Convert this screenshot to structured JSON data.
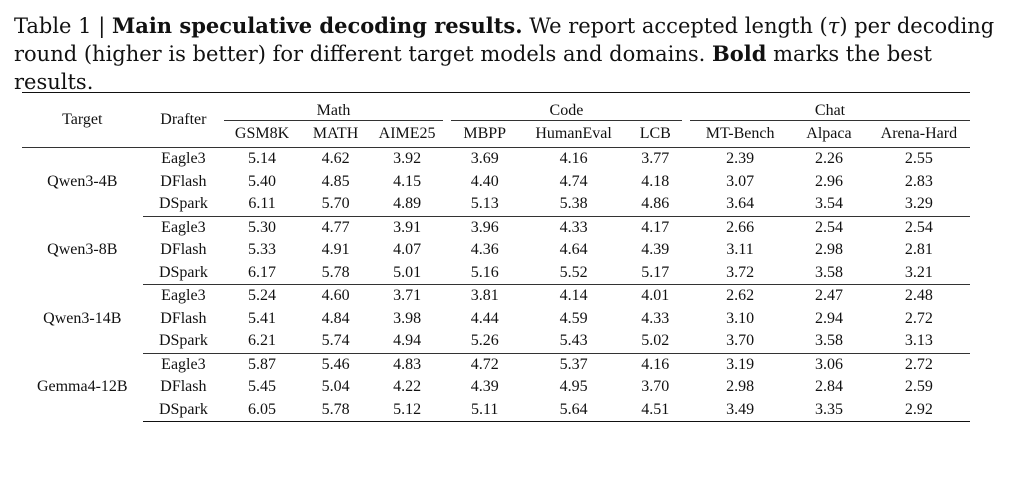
{
  "caption": {
    "label": "Table 1 |",
    "title": "Main speculative decoding results.",
    "text1": "We report accepted length (",
    "tau": "τ",
    "text2": ") per decoding round (higher is better) for different target models and domains.",
    "bold_word": "Bold",
    "text3": "marks the best results."
  },
  "headers": {
    "target": "Target",
    "drafter": "Drafter",
    "groups": [
      "Math",
      "Code",
      "Chat"
    ],
    "columns": [
      "GSM8K",
      "MATH",
      "AIME25",
      "MBPP",
      "HumanEval",
      "LCB",
      "MT-Bench",
      "Alpaca",
      "Arena-Hard"
    ]
  },
  "blocks": [
    {
      "target": "Qwen3-4B",
      "rows": [
        {
          "drafter": "Eagle3",
          "values": [
            "5.14",
            "4.62",
            "3.92",
            "3.69",
            "4.16",
            "3.77",
            "2.39",
            "2.26",
            "2.55"
          ]
        },
        {
          "drafter": "DFlash",
          "values": [
            "5.40",
            "4.85",
            "4.15",
            "4.40",
            "4.74",
            "4.18",
            "3.07",
            "2.96",
            "2.83"
          ]
        },
        {
          "drafter": "DSpark",
          "values": [
            "6.11",
            "5.70",
            "4.89",
            "5.13",
            "5.38",
            "4.86",
            "3.64",
            "3.54",
            "3.29"
          ]
        }
      ]
    },
    {
      "target": "Qwen3-8B",
      "rows": [
        {
          "drafter": "Eagle3",
          "values": [
            "5.30",
            "4.77",
            "3.91",
            "3.96",
            "4.33",
            "4.17",
            "2.66",
            "2.54",
            "2.54"
          ]
        },
        {
          "drafter": "DFlash",
          "values": [
            "5.33",
            "4.91",
            "4.07",
            "4.36",
            "4.64",
            "4.39",
            "3.11",
            "2.98",
            "2.81"
          ]
        },
        {
          "drafter": "DSpark",
          "values": [
            "6.17",
            "5.78",
            "5.01",
            "5.16",
            "5.52",
            "5.17",
            "3.72",
            "3.58",
            "3.21"
          ]
        }
      ]
    },
    {
      "target": "Qwen3-14B",
      "rows": [
        {
          "drafter": "Eagle3",
          "values": [
            "5.24",
            "4.60",
            "3.71",
            "3.81",
            "4.14",
            "4.01",
            "2.62",
            "2.47",
            "2.48"
          ]
        },
        {
          "drafter": "DFlash",
          "values": [
            "5.41",
            "4.84",
            "3.98",
            "4.44",
            "4.59",
            "4.33",
            "3.10",
            "2.94",
            "2.72"
          ]
        },
        {
          "drafter": "DSpark",
          "values": [
            "6.21",
            "5.74",
            "4.94",
            "5.26",
            "5.43",
            "5.02",
            "3.70",
            "3.58",
            "3.13"
          ]
        }
      ]
    },
    {
      "target": "Gemma4-12B",
      "rows": [
        {
          "drafter": "Eagle3",
          "values": [
            "5.87",
            "5.46",
            "4.83",
            "4.72",
            "5.37",
            "4.16",
            "3.19",
            "3.06",
            "2.72"
          ]
        },
        {
          "drafter": "DFlash",
          "values": [
            "5.45",
            "5.04",
            "4.22",
            "4.39",
            "4.95",
            "3.70",
            "2.98",
            "2.84",
            "2.59"
          ]
        },
        {
          "drafter": "DSpark",
          "values": [
            "6.05",
            "5.78",
            "5.12",
            "5.11",
            "5.64",
            "4.51",
            "3.49",
            "3.35",
            "2.92"
          ]
        }
      ]
    }
  ],
  "best_drafter": "DSpark"
}
